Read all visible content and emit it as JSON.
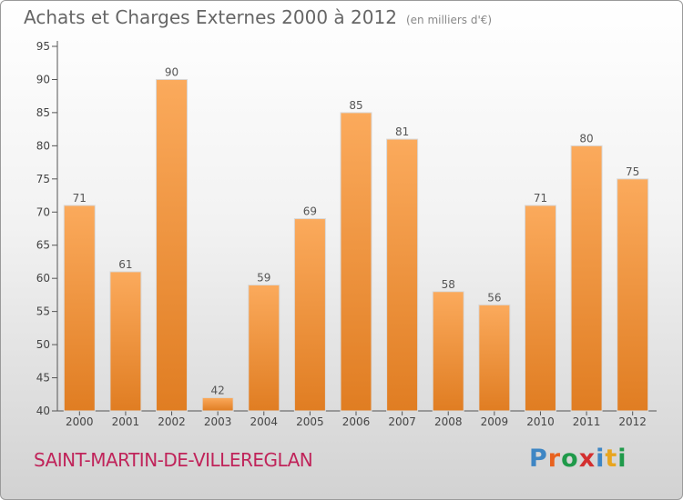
{
  "header": {
    "title": "Achats et Charges Externes 2000 à 2012",
    "unit_label": "(en milliers d'€)"
  },
  "footer": {
    "commune": "SAINT-MARTIN-DE-VILLEREGLAN",
    "logo_text": "Proxiti"
  },
  "colors": {
    "bar_top": "#fbaa5c",
    "bar_bottom": "#e07d22",
    "logo_letters": [
      "#3e86c4",
      "#e8621f",
      "#1f9a4a",
      "#d32f2f",
      "#3e86c4",
      "#e8a51f",
      "#1f9a4a"
    ]
  },
  "chart_data": {
    "type": "bar",
    "title": "Achats et Charges Externes 2000 à 2012",
    "subtitle": "(en milliers d'€)",
    "categories": [
      "2000",
      "2001",
      "2002",
      "2003",
      "2004",
      "2005",
      "2006",
      "2007",
      "2008",
      "2009",
      "2010",
      "2011",
      "2012"
    ],
    "values": [
      71,
      61,
      90,
      42,
      59,
      69,
      85,
      81,
      58,
      56,
      71,
      80,
      75
    ],
    "ylim": [
      40,
      95
    ],
    "yticks": [
      40,
      45,
      50,
      55,
      60,
      65,
      70,
      75,
      80,
      85,
      90,
      95
    ],
    "grid": false,
    "data_labels": true
  }
}
